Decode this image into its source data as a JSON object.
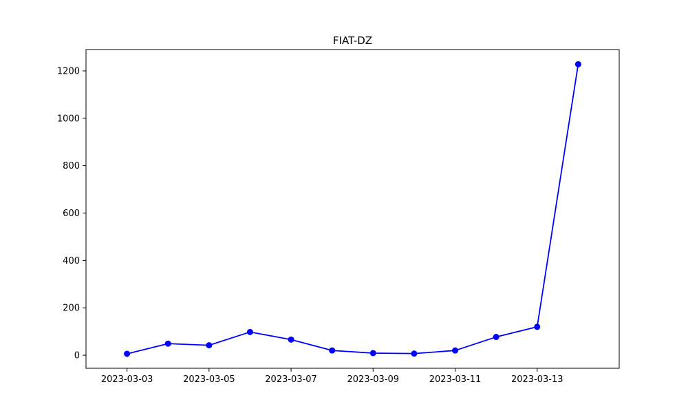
{
  "chart_data": {
    "type": "line",
    "title": "FIAT-DZ",
    "xlabel": "",
    "ylabel": "",
    "x": [
      "2023-03-03",
      "2023-03-04",
      "2023-03-05",
      "2023-03-06",
      "2023-03-07",
      "2023-03-08",
      "2023-03-09",
      "2023-03-10",
      "2023-03-11",
      "2023-03-12",
      "2023-03-13",
      "2023-03-14"
    ],
    "series": [
      {
        "values": [
          6,
          49,
          42,
          98,
          66,
          20,
          9,
          7,
          20,
          77,
          120,
          1228
        ],
        "color": "#0000ff",
        "marker": "circle"
      }
    ],
    "xlim": [
      "2023-03-02",
      "2023-03-15"
    ],
    "ylim": [
      -55,
      1290
    ],
    "xticks": [
      "2023-03-03",
      "2023-03-05",
      "2023-03-07",
      "2023-03-09",
      "2023-03-11",
      "2023-03-13"
    ],
    "yticks": [
      0,
      200,
      400,
      600,
      800,
      1000,
      1200
    ],
    "grid": false,
    "legend": "none"
  }
}
